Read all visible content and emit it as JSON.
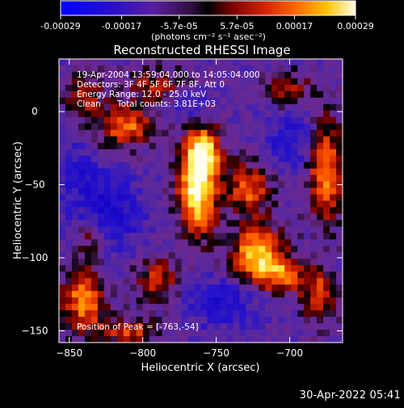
{
  "app": {
    "timestamp": "30-Apr-2022 05:41"
  },
  "colorbar": {
    "ticks": [
      "-0.00029",
      "-0.00017",
      "-5.7e-05",
      "5.7e-05",
      "0.00017",
      "0.00029"
    ],
    "tick_values": [
      -0.00029,
      -0.00017,
      -5.7e-05,
      5.7e-05,
      0.00017,
      0.00029
    ],
    "range": [
      -0.00029,
      0.00029
    ],
    "units_label": "(photons cm⁻² s⁻¹ asec⁻²)"
  },
  "chart_data": {
    "type": "heatmap",
    "title": "Reconstructed RHESSI Image",
    "xlabel": "Heliocentric X (arcsec)",
    "ylabel": "Heliocentric Y (arcsec)",
    "xlim": [
      -857,
      -664
    ],
    "ylim": [
      -158,
      36
    ],
    "x_ticks": [
      -850,
      -800,
      -750,
      -700
    ],
    "y_ticks": [
      0,
      -50,
      -100,
      -150
    ],
    "x_tick_labels": [
      "−850",
      "−800",
      "−750",
      "−700"
    ],
    "y_tick_labels": [
      "0",
      "−50",
      "−100",
      "−150"
    ],
    "peak_position": [
      -763,
      -54
    ],
    "colormap": [
      "#1400b4",
      "#2020c0",
      "#5a2ca0",
      "#7a2c8c",
      "#000000",
      "#6e0000",
      "#c81e00",
      "#ff5a00",
      "#ffaa00",
      "#ffee44",
      "#ffffee"
    ],
    "annotations": {
      "time": "19-Apr-2004 13:59:04.000 to 14:05:04.000",
      "detectors": "Detectors: 3F 4F 5F 6F 7F 8F, Att 0",
      "energy": "Energy Range: 12.0 - 25.0 keV",
      "method": "Clean",
      "counts": "Total counts: 3.81E+03",
      "peak": "Position of Peak = [-763,-54]"
    }
  }
}
